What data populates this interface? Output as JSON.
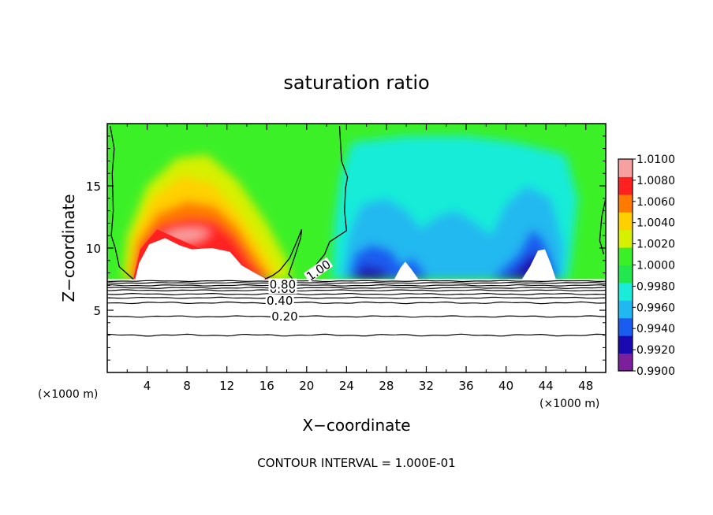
{
  "chart_data": {
    "type": "heatmap",
    "title": "saturation ratio",
    "xlabel": "X−coordinate",
    "ylabel": "Z−coordinate",
    "x_unit_label_left": "(×1000 m)",
    "x_unit_label_right": "(×1000 m)",
    "footer": "CONTOUR INTERVAL = 1.000E-01",
    "xlim": [
      0,
      50
    ],
    "ylim": [
      0,
      20
    ],
    "x_ticks": [
      4,
      8,
      12,
      16,
      20,
      24,
      28,
      32,
      36,
      40,
      44,
      48
    ],
    "y_ticks": [
      5,
      10,
      15
    ],
    "colorbar": {
      "levels": [
        0.99,
        0.992,
        0.994,
        0.996,
        0.998,
        1.0,
        1.002,
        1.004,
        1.006,
        1.008,
        1.01
      ],
      "labels": [
        "0.9900",
        "0.9920",
        "0.9940",
        "0.9960",
        "0.9980",
        "1.0000",
        "1.0020",
        "1.0040",
        "1.0060",
        "1.0080",
        "1.0100"
      ],
      "colors": [
        "#7b1f9c",
        "#1a08b0",
        "#1a5cf0",
        "#20b8f0",
        "#19ecd8",
        "#22e850",
        "#3cf028",
        "#d6f000",
        "#ffd000",
        "#ff7a00",
        "#ff2020",
        "#f7a0a0"
      ]
    },
    "background_value": 1.0,
    "dry_layer_top_km": 7.5,
    "contour_lines": [
      {
        "label": "0.20",
        "z_km": 4.5
      },
      {
        "label": "0.40",
        "z_km": 5.6
      },
      {
        "label": "0.60",
        "z_km": 6.6
      },
      {
        "label": "0.80",
        "z_km": 7.0
      },
      {
        "label": "1.00",
        "z_km": 7.6
      }
    ],
    "regions": [
      {
        "name": "supersaturated-plume",
        "x_center_km": 8,
        "z_center_km": 11.5,
        "peak_value": 1.008
      },
      {
        "name": "subsaturated-zone-left",
        "x_center_km": 30,
        "z_center_km": 9.5,
        "peak_value": 0.994
      },
      {
        "name": "subsaturated-zone-right",
        "x_center_km": 43,
        "z_center_km": 10,
        "peak_value": 0.99
      }
    ]
  }
}
